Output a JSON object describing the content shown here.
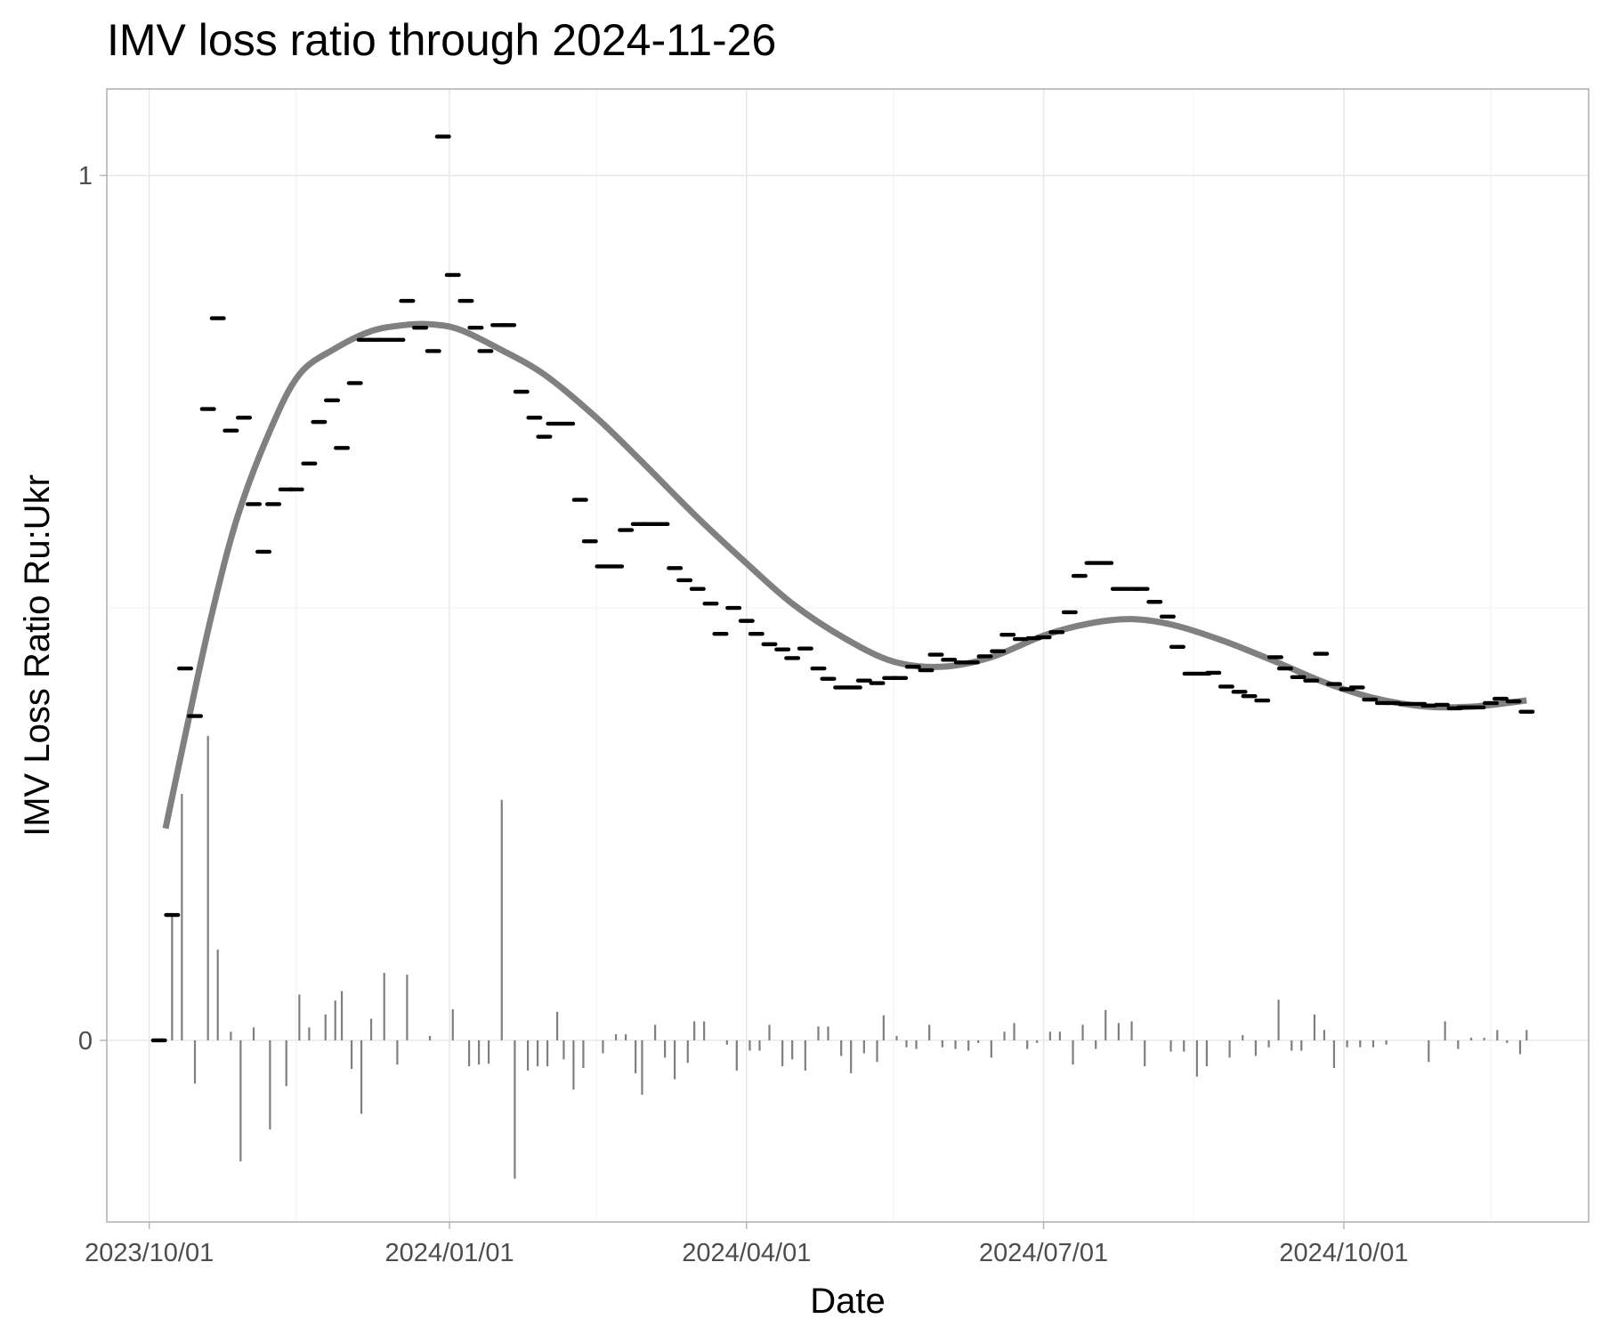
{
  "chart_data": {
    "type": "scatter",
    "title": "IMV loss ratio through 2024-11-26",
    "xlabel": "Date",
    "ylabel": "IMV Loss Ratio Ru:Ukr",
    "x_ticks": [
      "2023/10/01",
      "2024/01/01",
      "2024/04/01",
      "2024/07/01",
      "2024/10/01"
    ],
    "x_minor_ticks": [
      "2023/11/15",
      "2024/02/15",
      "2024/05/16",
      "2024/08/16",
      "2024/11/15"
    ],
    "y_ticks": [
      0,
      1
    ],
    "y_tick_labels": [
      "0",
      "1"
    ],
    "y_minor_ticks": [
      0.5
    ],
    "xlim": [
      "2023-09-18",
      "2024-12-15"
    ],
    "ylim": [
      -0.21,
      1.1
    ],
    "grid": true,
    "colors": {
      "points": "#000000",
      "smooth": "#808080",
      "bars": "#7f7f7f",
      "grid": "#e6e6e6",
      "border": "#b3b3b3"
    },
    "series": [
      {
        "kind": "points",
        "x": [
          "2023-10-04",
          "2023-10-08",
          "2023-10-12",
          "2023-10-15",
          "2023-10-19",
          "2023-10-22",
          "2023-10-26",
          "2023-10-30",
          "2023-11-02",
          "2023-11-05",
          "2023-11-08",
          "2023-11-12",
          "2023-11-15",
          "2023-11-19",
          "2023-11-22",
          "2023-11-26",
          "2023-11-29",
          "2023-12-03",
          "2023-12-06",
          "2023-12-09",
          "2023-12-12",
          "2023-12-16",
          "2023-12-19",
          "2023-12-23",
          "2023-12-27",
          "2023-12-30",
          "2024-01-02",
          "2024-01-06",
          "2024-01-09",
          "2024-01-12",
          "2024-01-16",
          "2024-01-19",
          "2024-01-23",
          "2024-01-27",
          "2024-01-30",
          "2024-02-02",
          "2024-02-06",
          "2024-02-10",
          "2024-02-13",
          "2024-02-17",
          "2024-02-21",
          "2024-02-24",
          "2024-02-28",
          "2024-03-02",
          "2024-03-06",
          "2024-03-10",
          "2024-03-13",
          "2024-03-17",
          "2024-03-21",
          "2024-03-24",
          "2024-03-28",
          "2024-04-01",
          "2024-04-04",
          "2024-04-08",
          "2024-04-12",
          "2024-04-15",
          "2024-04-19",
          "2024-04-23",
          "2024-04-26",
          "2024-04-30",
          "2024-05-04",
          "2024-05-07",
          "2024-05-11",
          "2024-05-15",
          "2024-05-18",
          "2024-05-22",
          "2024-05-26",
          "2024-05-29",
          "2024-06-02",
          "2024-06-06",
          "2024-06-09",
          "2024-06-13",
          "2024-06-17",
          "2024-06-20",
          "2024-06-24",
          "2024-06-28",
          "2024-07-01",
          "2024-07-05",
          "2024-07-09",
          "2024-07-12",
          "2024-07-16",
          "2024-07-20",
          "2024-07-24",
          "2024-07-28",
          "2024-07-31",
          "2024-08-04",
          "2024-08-08",
          "2024-08-11",
          "2024-08-15",
          "2024-08-19",
          "2024-08-22",
          "2024-08-26",
          "2024-08-30",
          "2024-09-02",
          "2024-09-06",
          "2024-09-10",
          "2024-09-13",
          "2024-09-17",
          "2024-09-21",
          "2024-09-24",
          "2024-09-28",
          "2024-10-02",
          "2024-10-05",
          "2024-10-09",
          "2024-10-13",
          "2024-10-16",
          "2024-10-20",
          "2024-10-24",
          "2024-10-27",
          "2024-10-31",
          "2024-11-04",
          "2024-11-07",
          "2024-11-11",
          "2024-11-15",
          "2024-11-18",
          "2024-11-22",
          "2024-11-26"
        ],
        "y": [
          0.0,
          0.145,
          0.43,
          0.375,
          0.73,
          0.835,
          0.705,
          0.72,
          0.62,
          0.565,
          0.62,
          0.637,
          0.637,
          0.667,
          0.715,
          0.74,
          0.685,
          0.76,
          0.81,
          0.81,
          0.81,
          0.81,
          0.855,
          0.824,
          0.797,
          1.045,
          0.885,
          0.855,
          0.824,
          0.797,
          0.827,
          0.827,
          0.75,
          0.72,
          0.698,
          0.713,
          0.713,
          0.625,
          0.577,
          0.548,
          0.548,
          0.59,
          0.597,
          0.597,
          0.597,
          0.546,
          0.532,
          0.522,
          0.505,
          0.47,
          0.5,
          0.485,
          0.47,
          0.458,
          0.452,
          0.442,
          0.453,
          0.43,
          0.418,
          0.408,
          0.408,
          0.416,
          0.413,
          0.419,
          0.419,
          0.432,
          0.428,
          0.446,
          0.44,
          0.437,
          0.437,
          0.444,
          0.45,
          0.469,
          0.464,
          0.465,
          0.466,
          0.472,
          0.495,
          0.537,
          0.552,
          0.552,
          0.522,
          0.522,
          0.522,
          0.507,
          0.49,
          0.455,
          0.424,
          0.424,
          0.425,
          0.409,
          0.403,
          0.398,
          0.393,
          0.443,
          0.43,
          0.42,
          0.416,
          0.447,
          0.412,
          0.406,
          0.408,
          0.394,
          0.39,
          0.39,
          0.389,
          0.389,
          0.387,
          0.388,
          0.384,
          0.385,
          0.385,
          0.39,
          0.395,
          0.392,
          0.38
        ]
      },
      {
        "kind": "smooth",
        "x": [
          "2023-10-06",
          "2023-10-13",
          "2023-10-20",
          "2023-10-28",
          "2023-11-07",
          "2023-11-16",
          "2023-11-27",
          "2023-12-08",
          "2023-12-18",
          "2023-12-26",
          "2024-01-04",
          "2024-01-16",
          "2024-01-30",
          "2024-02-15",
          "2024-03-01",
          "2024-03-16",
          "2024-03-31",
          "2024-04-15",
          "2024-05-01",
          "2024-05-16",
          "2024-05-31",
          "2024-06-15",
          "2024-07-01",
          "2024-07-15",
          "2024-07-28",
          "2024-08-10",
          "2024-08-25",
          "2024-09-10",
          "2024-09-25",
          "2024-10-10",
          "2024-10-26",
          "2024-11-10",
          "2024-11-26"
        ],
        "y": [
          0.245,
          0.37,
          0.49,
          0.605,
          0.705,
          0.77,
          0.8,
          0.82,
          0.827,
          0.828,
          0.822,
          0.8,
          0.77,
          0.72,
          0.665,
          0.608,
          0.555,
          0.505,
          0.465,
          0.438,
          0.432,
          0.443,
          0.468,
          0.482,
          0.487,
          0.48,
          0.462,
          0.438,
          0.414,
          0.396,
          0.386,
          0.386,
          0.393
        ]
      },
      {
        "kind": "bars",
        "x": [
          "2023-10-08",
          "2023-10-11",
          "2023-10-15",
          "2023-10-19",
          "2023-10-22",
          "2023-10-26",
          "2023-10-29",
          "2023-11-02",
          "2023-11-07",
          "2023-11-12",
          "2023-11-16",
          "2023-11-19",
          "2023-11-24",
          "2023-11-27",
          "2023-11-29",
          "2023-12-02",
          "2023-12-05",
          "2023-12-08",
          "2023-12-12",
          "2023-12-16",
          "2023-12-19",
          "2023-12-26",
          "2024-01-02",
          "2024-01-07",
          "2024-01-10",
          "2024-01-13",
          "2024-01-17",
          "2024-01-21",
          "2024-01-25",
          "2024-01-28",
          "2024-01-31",
          "2024-02-03",
          "2024-02-05",
          "2024-02-08",
          "2024-02-11",
          "2024-02-17",
          "2024-02-21",
          "2024-02-24",
          "2024-02-27",
          "2024-02-29",
          "2024-03-04",
          "2024-03-07",
          "2024-03-10",
          "2024-03-14",
          "2024-03-16",
          "2024-03-19",
          "2024-03-26",
          "2024-03-29",
          "2024-04-02",
          "2024-04-05",
          "2024-04-08",
          "2024-04-12",
          "2024-04-15",
          "2024-04-19",
          "2024-04-23",
          "2024-04-26",
          "2024-04-30",
          "2024-05-03",
          "2024-05-07",
          "2024-05-11",
          "2024-05-13",
          "2024-05-17",
          "2024-05-20",
          "2024-05-23",
          "2024-05-27",
          "2024-05-31",
          "2024-06-04",
          "2024-06-08",
          "2024-06-11",
          "2024-06-15",
          "2024-06-19",
          "2024-06-22",
          "2024-06-26",
          "2024-06-29",
          "2024-07-03",
          "2024-07-06",
          "2024-07-10",
          "2024-07-13",
          "2024-07-17",
          "2024-07-20",
          "2024-07-24",
          "2024-07-28",
          "2024-08-01",
          "2024-08-09",
          "2024-08-13",
          "2024-08-17",
          "2024-08-20",
          "2024-08-27",
          "2024-08-31",
          "2024-09-04",
          "2024-09-08",
          "2024-09-11",
          "2024-09-15",
          "2024-09-18",
          "2024-09-22",
          "2024-09-25",
          "2024-09-28",
          "2024-10-02",
          "2024-10-06",
          "2024-10-10",
          "2024-10-14",
          "2024-10-27",
          "2024-11-01",
          "2024-11-05",
          "2024-11-09",
          "2024-11-13",
          "2024-11-17",
          "2024-11-20",
          "2024-11-24",
          "2024-11-26"
        ],
        "y": [
          0.145,
          0.285,
          -0.05,
          0.352,
          0.105,
          0.01,
          -0.14,
          0.015,
          -0.103,
          -0.053,
          0.053,
          0.015,
          0.03,
          0.046,
          0.057,
          -0.033,
          -0.085,
          0.025,
          0.078,
          -0.028,
          0.076,
          0.005,
          0.036,
          -0.03,
          -0.028,
          -0.027,
          0.278,
          -0.16,
          -0.035,
          -0.03,
          -0.03,
          0.033,
          -0.022,
          -0.057,
          -0.032,
          -0.015,
          0.007,
          0.007,
          -0.038,
          -0.063,
          0.018,
          -0.02,
          -0.045,
          -0.026,
          0.022,
          0.022,
          -0.005,
          -0.035,
          -0.012,
          -0.012,
          0.018,
          -0.03,
          -0.022,
          -0.035,
          0.016,
          0.016,
          -0.018,
          -0.038,
          -0.015,
          -0.025,
          0.029,
          0.005,
          -0.008,
          -0.01,
          0.018,
          -0.008,
          -0.01,
          -0.012,
          -0.003,
          -0.02,
          0.01,
          0.02,
          -0.01,
          -0.003,
          0.01,
          0.01,
          -0.028,
          0.018,
          -0.01,
          0.035,
          0.02,
          0.022,
          -0.03,
          -0.013,
          -0.013,
          -0.042,
          -0.03,
          -0.02,
          0.006,
          -0.018,
          -0.008,
          0.047,
          -0.012,
          -0.012,
          0.03,
          0.012,
          -0.032,
          -0.008,
          -0.008,
          -0.008,
          -0.005,
          -0.025,
          0.022,
          -0.01,
          0.003,
          0.003,
          0.012,
          -0.003,
          -0.016,
          0.012
        ]
      }
    ]
  }
}
